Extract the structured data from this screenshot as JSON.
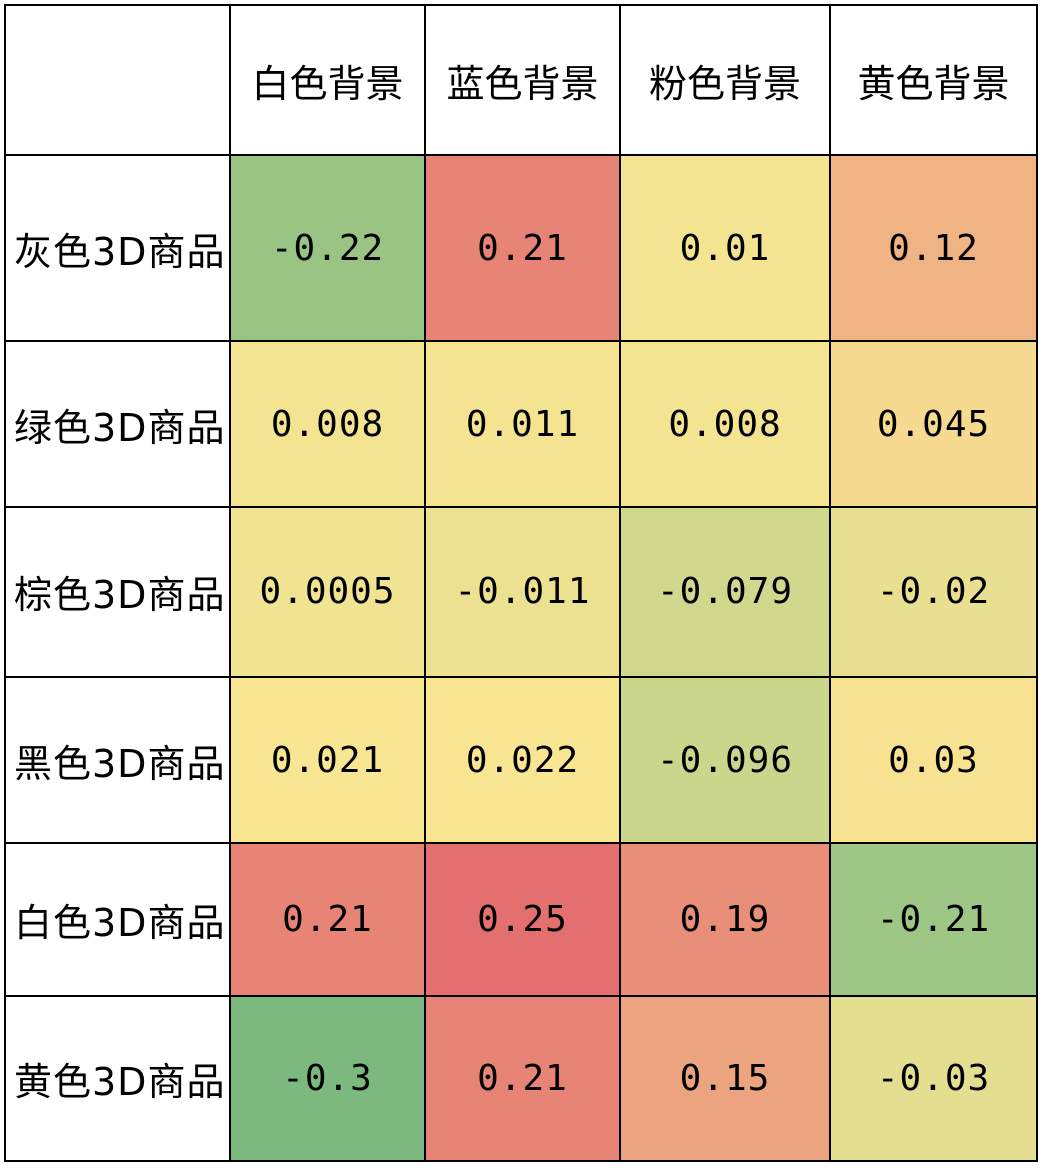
{
  "chart_data": {
    "type": "heatmap",
    "columns": [
      "白色背景",
      "蓝色背景",
      "粉色背景",
      "黄色背景"
    ],
    "rows": [
      "灰色3D商品",
      "绿色3D商品",
      "棕色3D商品",
      "黑色3D商品",
      "白色3D商品",
      "黄色3D商品"
    ],
    "values": [
      [
        "-0.22",
        "0.21",
        "0.01",
        "0.12"
      ],
      [
        "0.008",
        "0.011",
        "0.008",
        "0.045"
      ],
      [
        "0.0005",
        "-0.011",
        "-0.079",
        "-0.02"
      ],
      [
        "0.021",
        "0.022",
        "-0.096",
        "0.03"
      ],
      [
        "0.21",
        "0.25",
        "0.19",
        "-0.21"
      ],
      [
        "-0.3",
        "0.21",
        "0.15",
        "-0.03"
      ]
    ],
    "color_scale": {
      "low": "#7bb97f",
      "mid": "#f8e693",
      "high": "#e36f6f"
    }
  }
}
